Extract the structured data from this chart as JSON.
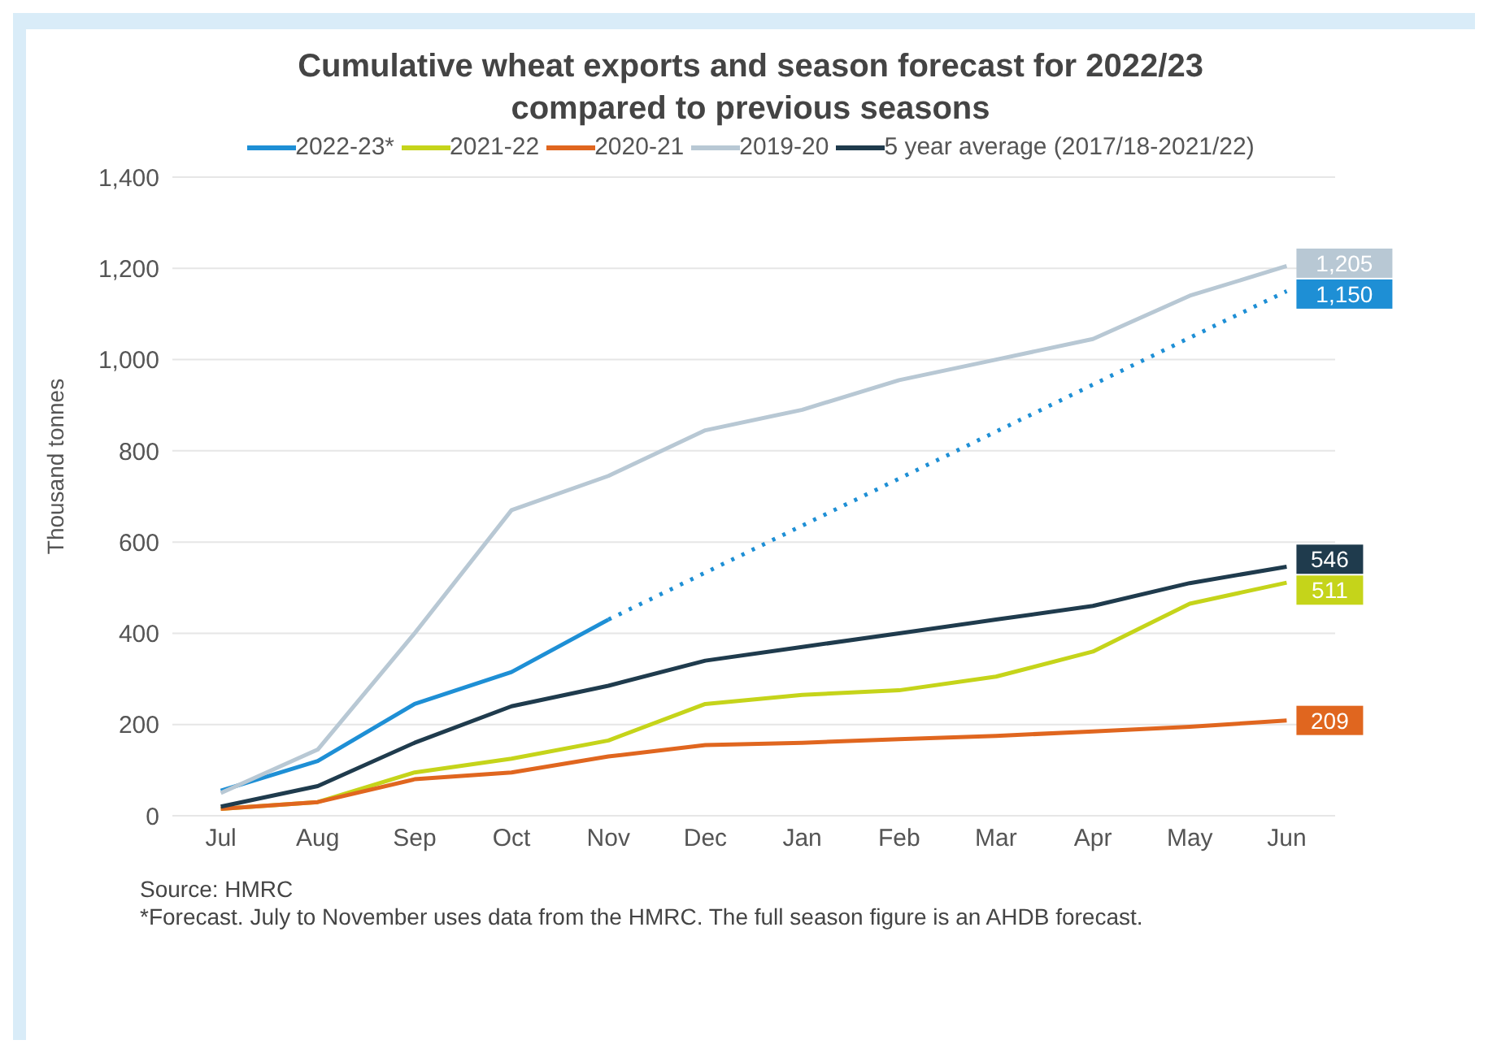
{
  "chart_data": {
    "type": "line",
    "title": "Cumulative wheat exports and season forecast for 2022/23 compared to previous seasons",
    "ylabel": "Thousand tonnes",
    "categories": [
      "Jul",
      "Aug",
      "Sep",
      "Oct",
      "Nov",
      "Dec",
      "Jan",
      "Feb",
      "Mar",
      "Apr",
      "May",
      "Jun"
    ],
    "series": [
      {
        "name": "2022-23*",
        "color": "#1e8fd5",
        "values": [
          55,
          120,
          245,
          315,
          430,
          null,
          null,
          null,
          null,
          null,
          null,
          null
        ]
      },
      {
        "name": "2021-22",
        "color": "#c5d41a",
        "values": [
          15,
          30,
          95,
          125,
          165,
          245,
          265,
          275,
          305,
          360,
          465,
          511
        ],
        "value_labels": [
          null,
          null,
          null,
          null,
          null,
          null,
          null,
          null,
          null,
          null,
          null,
          "511"
        ]
      },
      {
        "name": "2020-21",
        "color": "#e0661f",
        "values": [
          15,
          30,
          80,
          95,
          130,
          155,
          160,
          168,
          175,
          185,
          195,
          209
        ],
        "value_labels": [
          null,
          null,
          null,
          null,
          null,
          null,
          null,
          null,
          null,
          null,
          null,
          "209"
        ]
      },
      {
        "name": "2019-20",
        "color": "#b8c8d4",
        "values": [
          50,
          145,
          400,
          670,
          745,
          845,
          890,
          955,
          1000,
          1045,
          1140,
          1205
        ],
        "value_labels": [
          null,
          null,
          null,
          null,
          null,
          null,
          null,
          null,
          null,
          null,
          null,
          "1,205"
        ]
      },
      {
        "name": "5 year average (2017/18-2021/22)",
        "color": "#1f3b4d",
        "values": [
          20,
          65,
          160,
          240,
          285,
          340,
          370,
          400,
          430,
          460,
          510,
          546
        ],
        "value_labels": [
          null,
          null,
          null,
          null,
          null,
          null,
          null,
          null,
          null,
          null,
          null,
          "546"
        ]
      },
      {
        "color": "#1e8fd5",
        "line_style": "dotted",
        "values": [
          null,
          null,
          null,
          null,
          430,
          533,
          636,
          739,
          842,
          945,
          1048,
          1150
        ],
        "value_labels": [
          null,
          null,
          null,
          null,
          null,
          null,
          null,
          null,
          null,
          null,
          null,
          "1,150"
        ]
      }
    ],
    "ylim": [
      0,
      1400
    ],
    "yticks": [
      0,
      {
        "value": 200,
        "label": "200"
      },
      {
        "value": 400,
        "label": "400"
      },
      {
        "value": 600,
        "label": "600"
      },
      {
        "value": 800,
        "label": "800"
      },
      {
        "value": 1000,
        "label": "1,000"
      },
      {
        "value": 1200,
        "label": "1,200"
      },
      {
        "value": 1400,
        "label": "1,400"
      }
    ],
    "grid": "y",
    "legend": "top",
    "marker": "none",
    "line_style": "solid",
    "annotations": [
      "Source: HMRC",
      "*Forecast. July to November uses data from the HMRC. The full season figure is an AHDB forecast."
    ]
  }
}
